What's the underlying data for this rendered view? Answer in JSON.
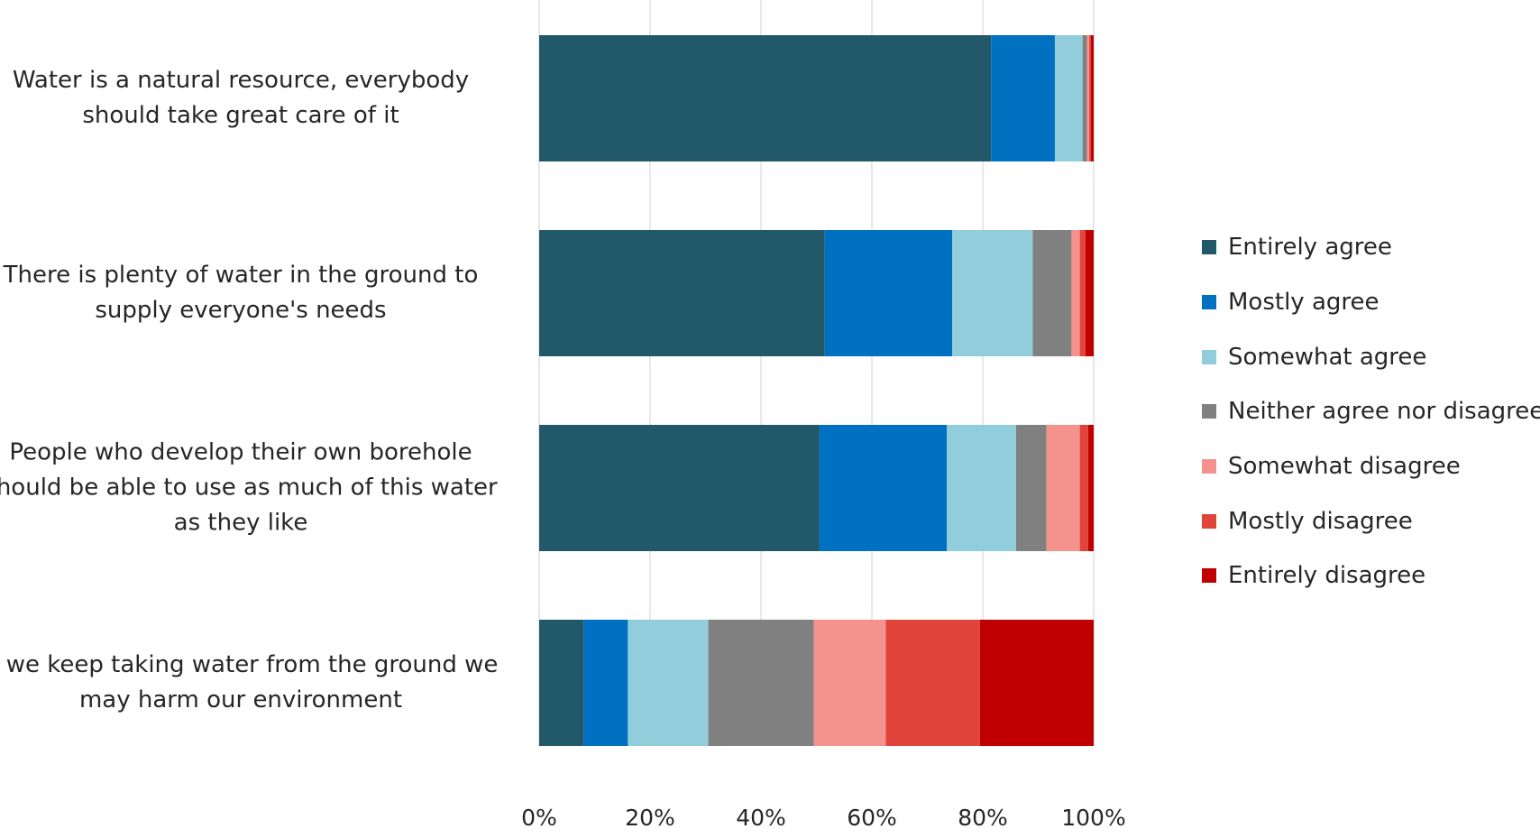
{
  "chart_data": {
    "type": "bar",
    "orientation": "horizontal",
    "stacked": true,
    "normalized_percent": true,
    "title": "",
    "xlabel": "",
    "ylabel": "",
    "xlim": [
      0,
      100
    ],
    "x_ticks": [
      "0%",
      "20%",
      "40%",
      "60%",
      "80%",
      "100%"
    ],
    "grid": "vertical",
    "legend_position": "right",
    "categories": [
      "Water is a natural resource, everybody\nshould take great care of it",
      "There is plenty of water in the ground to\nsupply everyone's needs",
      "People who develop their own borehole\nshould be able to use as much of this water\nas they like",
      "If we keep taking water from the ground we\nmay harm our environment"
    ],
    "series": [
      {
        "name": "Entirely agree",
        "color": "#215968",
        "values": [
          81.5,
          51.5,
          50.5,
          8
        ]
      },
      {
        "name": "Mostly agree",
        "color": "#0070C0",
        "values": [
          11.5,
          23,
          23,
          8
        ]
      },
      {
        "name": "Somewhat agree",
        "color": "#92CDDC",
        "values": [
          5,
          14.5,
          12.5,
          14.5
        ]
      },
      {
        "name": "Neither agree nor disagree",
        "color": "#808080",
        "values": [
          0.8,
          7,
          5.5,
          19
        ]
      },
      {
        "name": "Somewhat disagree",
        "color": "#F4928E",
        "values": [
          0.4,
          1.5,
          6,
          13
        ]
      },
      {
        "name": "Mostly disagree",
        "color": "#E0443A",
        "values": [
          0.3,
          1,
          1.5,
          17
        ]
      },
      {
        "name": "Entirely disagree",
        "color": "#C00000",
        "values": [
          0.5,
          1.5,
          1,
          20.5
        ]
      }
    ]
  }
}
